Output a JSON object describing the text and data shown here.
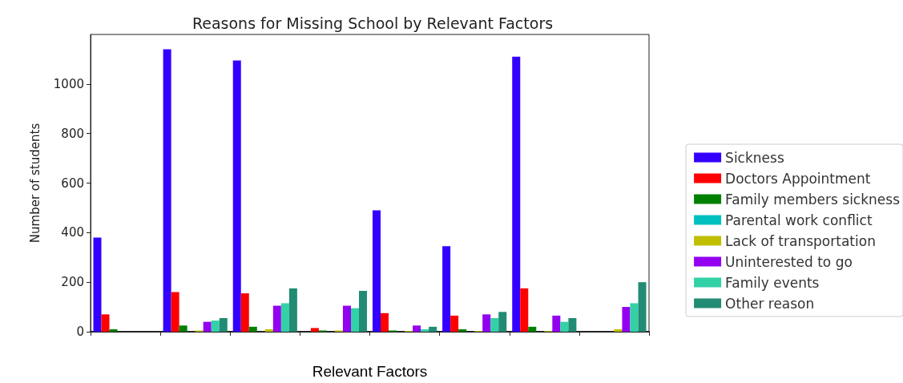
{
  "chart_data": {
    "type": "bar",
    "title": "Reasons for Missing School by Relevant Factors",
    "xlabel": "Relevant Factors",
    "ylabel": "Number of students",
    "categories": [
      null,
      null,
      null,
      null,
      null,
      null,
      null,
      null
    ],
    "series": [
      {
        "name": "Sickness",
        "color": "#3300ff",
        "values": [
          380,
          1140,
          1095,
          null,
          490,
          345,
          1110,
          null
        ]
      },
      {
        "name": "Doctors Appointment",
        "color": "#ff0000",
        "values": [
          70,
          160,
          155,
          15,
          75,
          65,
          175,
          null
        ]
      },
      {
        "name": "Family members sickness",
        "color": "#008000",
        "values": [
          10,
          25,
          20,
          5,
          5,
          10,
          20,
          null
        ]
      },
      {
        "name": "Parental work conflict",
        "color": "#00bfbf",
        "values": [
          null,
          null,
          null,
          null,
          null,
          null,
          null,
          null
        ]
      },
      {
        "name": "Lack of transportation",
        "color": "#bfbf00",
        "values": [
          null,
          5,
          10,
          5,
          3,
          3,
          3,
          10
        ]
      },
      {
        "name": "Uninterested to go",
        "color": "#9400f0",
        "values": [
          null,
          40,
          105,
          105,
          25,
          70,
          65,
          100
        ]
      },
      {
        "name": "Family events",
        "color": "#33d1a6",
        "values": [
          null,
          45,
          115,
          95,
          10,
          55,
          40,
          115
        ]
      },
      {
        "name": "Other reason",
        "color": "#228b74",
        "values": [
          null,
          55,
          175,
          165,
          20,
          80,
          55,
          200
        ]
      }
    ],
    "ylim": [
      0,
      1200
    ],
    "yticks": [
      0,
      200,
      400,
      600,
      800,
      1000
    ],
    "grid": false,
    "legend": "right"
  }
}
